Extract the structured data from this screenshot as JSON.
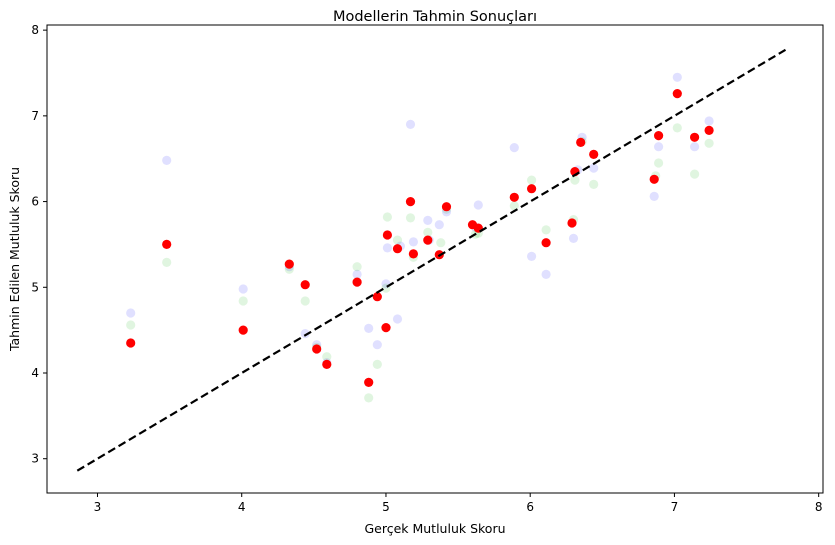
{
  "chart_data": {
    "type": "scatter",
    "title": "Modellerin Tahmin Sonuçları",
    "xlabel": "Gerçek Mutluluk Skoru",
    "ylabel": "Tahmin Edilen Mutluluk Skoru",
    "xlim": [
      2.65,
      8.03
    ],
    "ylim": [
      2.6,
      8.06
    ],
    "xticks": [
      3,
      4,
      5,
      6,
      7,
      8
    ],
    "yticks": [
      3,
      4,
      5,
      6,
      7,
      8
    ],
    "grid": false,
    "reference_line": {
      "style": "dashed",
      "color": "#000000",
      "points": [
        [
          2.86,
          2.86
        ],
        [
          7.77,
          7.77
        ]
      ]
    },
    "series": [
      {
        "color": "#0000ff",
        "opacity": 0.12,
        "points": [
          [
            3.23,
            4.7
          ],
          [
            3.48,
            6.48
          ],
          [
            4.01,
            4.98
          ],
          [
            4.33,
            5.24
          ],
          [
            4.44,
            4.46
          ],
          [
            4.52,
            4.33
          ],
          [
            4.59,
            4.12
          ],
          [
            4.8,
            5.15
          ],
          [
            4.88,
            4.52
          ],
          [
            4.94,
            4.33
          ],
          [
            5.0,
            5.04
          ],
          [
            5.01,
            5.46
          ],
          [
            5.08,
            4.63
          ],
          [
            5.1,
            5.48
          ],
          [
            5.17,
            6.9
          ],
          [
            5.19,
            5.53
          ],
          [
            5.29,
            5.78
          ],
          [
            5.3,
            5.55
          ],
          [
            5.37,
            5.73
          ],
          [
            5.42,
            5.88
          ],
          [
            5.62,
            5.7
          ],
          [
            5.64,
            5.96
          ],
          [
            5.89,
            6.63
          ],
          [
            6.01,
            5.36
          ],
          [
            6.11,
            5.15
          ],
          [
            6.3,
            5.57
          ],
          [
            6.33,
            6.37
          ],
          [
            6.36,
            6.75
          ],
          [
            6.44,
            6.39
          ],
          [
            6.86,
            6.06
          ],
          [
            6.89,
            6.64
          ],
          [
            7.02,
            7.45
          ],
          [
            7.14,
            6.64
          ],
          [
            7.24,
            6.94
          ]
        ]
      },
      {
        "color": "#00aa00",
        "opacity": 0.12,
        "points": [
          [
            3.23,
            4.56
          ],
          [
            3.48,
            5.29
          ],
          [
            4.01,
            4.84
          ],
          [
            4.33,
            5.21
          ],
          [
            4.44,
            4.84
          ],
          [
            4.52,
            4.3
          ],
          [
            4.59,
            4.19
          ],
          [
            4.8,
            5.24
          ],
          [
            4.88,
            3.71
          ],
          [
            4.94,
            4.1
          ],
          [
            5.0,
            4.99
          ],
          [
            5.01,
            5.82
          ],
          [
            5.08,
            5.55
          ],
          [
            5.17,
            5.81
          ],
          [
            5.19,
            5.35
          ],
          [
            5.29,
            5.64
          ],
          [
            5.38,
            5.52
          ],
          [
            5.42,
            5.91
          ],
          [
            5.62,
            5.62
          ],
          [
            5.64,
            5.63
          ],
          [
            5.89,
            5.95
          ],
          [
            6.01,
            6.25
          ],
          [
            6.11,
            5.67
          ],
          [
            6.3,
            5.79
          ],
          [
            6.31,
            6.25
          ],
          [
            6.36,
            6.7
          ],
          [
            6.44,
            6.2
          ],
          [
            6.87,
            6.3
          ],
          [
            6.89,
            6.45
          ],
          [
            7.02,
            6.86
          ],
          [
            7.14,
            6.32
          ],
          [
            7.24,
            6.68
          ]
        ]
      },
      {
        "color": "#ff0000",
        "opacity": 1,
        "points": [
          [
            3.23,
            4.35
          ],
          [
            3.48,
            5.5
          ],
          [
            4.01,
            4.5
          ],
          [
            4.33,
            5.27
          ],
          [
            4.44,
            5.03
          ],
          [
            4.52,
            4.28
          ],
          [
            4.59,
            4.1
          ],
          [
            4.8,
            5.06
          ],
          [
            4.88,
            3.89
          ],
          [
            4.94,
            4.89
          ],
          [
            5.0,
            4.53
          ],
          [
            5.01,
            5.61
          ],
          [
            5.08,
            5.45
          ],
          [
            5.17,
            6.0
          ],
          [
            5.19,
            5.39
          ],
          [
            5.29,
            5.55
          ],
          [
            5.37,
            5.38
          ],
          [
            5.42,
            5.94
          ],
          [
            5.6,
            5.73
          ],
          [
            5.64,
            5.69
          ],
          [
            5.89,
            6.05
          ],
          [
            6.01,
            6.15
          ],
          [
            6.11,
            5.52
          ],
          [
            6.29,
            5.75
          ],
          [
            6.31,
            6.35
          ],
          [
            6.35,
            6.69
          ],
          [
            6.44,
            6.55
          ],
          [
            6.86,
            6.26
          ],
          [
            6.89,
            6.77
          ],
          [
            7.02,
            7.26
          ],
          [
            7.14,
            6.75
          ],
          [
            7.24,
            6.83
          ]
        ]
      }
    ]
  }
}
